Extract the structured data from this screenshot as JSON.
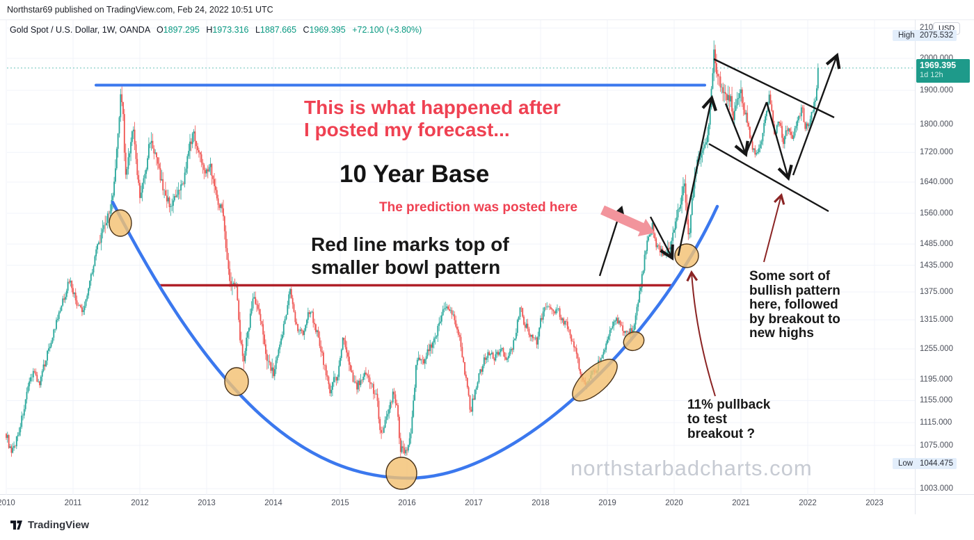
{
  "header": {
    "publish_line": "Northstar69 published on TradingView.com, Feb 24, 2022 10:51 UTC"
  },
  "legend": {
    "symbol": "Gold Spot / U.S. Dollar, 1W, OANDA",
    "o_label": "O",
    "o_value": "1897.295",
    "h_label": "H",
    "h_value": "1973.316",
    "l_label": "L",
    "l_value": "1887.665",
    "c_label": "C",
    "c_value": "1969.395",
    "change": "+72.100 (+3.80%)"
  },
  "price_axis": {
    "currency_button": "USD",
    "high_badge": {
      "label": "High",
      "value": "2075.532"
    },
    "low_badge": {
      "label": "Low",
      "value": "1044.475"
    },
    "last_price_badge": {
      "price": "1969.395",
      "countdown": "1d 12h"
    }
  },
  "annotations": {
    "headline": {
      "line1": "This is what happened after",
      "line2": "I posted my forecast..."
    },
    "base_label": {
      "text": "10 Year Base"
    },
    "prediction_label": {
      "text": "The prediction was posted here"
    },
    "redline_note": {
      "line1": "Red line marks top of",
      "line2": "smaller bowl pattern"
    },
    "bullish_note": {
      "line1": "Some sort of",
      "line2": "bullish pattern",
      "line3": "here, followed",
      "line4": "by breakout to",
      "line5": "new highs"
    },
    "pullback_note": {
      "line1": "11% pullback",
      "line2": "to test",
      "line3": "breakout ?"
    }
  },
  "watermark": {
    "text": "northstarbadcharts.com"
  },
  "footer": {
    "logo_text": "TradingView"
  },
  "chart_data": {
    "type": "candlestick",
    "title": "Gold Spot / U.S. Dollar",
    "timeframe": "1W",
    "exchange": "OANDA",
    "last_bar": {
      "open": 1897.295,
      "high": 1973.316,
      "low": 1887.665,
      "close": 1969.395,
      "change": 72.1,
      "change_pct": 3.8
    },
    "y_axis": {
      "scale": "log",
      "ticks": [
        2100,
        2000,
        1900,
        1800,
        1720,
        1640,
        1560,
        1485,
        1435,
        1375,
        1315,
        1255,
        1195,
        1155,
        1115,
        1075,
        1003
      ],
      "high_marker": 2075.532,
      "low_marker": 1044.475,
      "last_price": 1969.395
    },
    "x_axis": {
      "years": [
        2010,
        2011,
        2012,
        2013,
        2014,
        2015,
        2016,
        2017,
        2018,
        2019,
        2020,
        2021,
        2022,
        2023
      ]
    },
    "grid": true,
    "colors": {
      "up": "#26a69a",
      "down": "#ef5350",
      "blue_line": "#3b78ee",
      "red_line": "#b02028",
      "maroon": "#8b2424",
      "pink": "#f2949c",
      "ellipse": "#f3c173",
      "black": "#161616"
    },
    "overlays": {
      "horizontal_blue_line_price": 1917,
      "horizontal_red_line_price": 1400,
      "bowl_pattern": "10 year rounded base from 2011 peak to 2020 breakout",
      "descending_channel": "bull flag 2020-2022 with zigzag arrows and breakout arrow"
    },
    "price_path": [
      [
        2010.0,
        1095
      ],
      [
        2010.08,
        1058
      ],
      [
        2010.2,
        1105
      ],
      [
        2010.4,
        1215
      ],
      [
        2010.5,
        1185
      ],
      [
        2010.6,
        1240
      ],
      [
        2010.8,
        1330
      ],
      [
        2010.95,
        1405
      ],
      [
        2011.05,
        1350
      ],
      [
        2011.15,
        1330
      ],
      [
        2011.35,
        1470
      ],
      [
        2011.5,
        1540
      ],
      [
        2011.6,
        1600
      ],
      [
        2011.68,
        1780
      ],
      [
        2011.71,
        1898
      ],
      [
        2011.75,
        1830
      ],
      [
        2011.78,
        1650
      ],
      [
        2011.85,
        1730
      ],
      [
        2011.9,
        1790
      ],
      [
        2011.95,
        1680
      ],
      [
        2012.0,
        1600
      ],
      [
        2012.1,
        1680
      ],
      [
        2012.15,
        1760
      ],
      [
        2012.25,
        1700
      ],
      [
        2012.35,
        1620
      ],
      [
        2012.45,
        1580
      ],
      [
        2012.55,
        1600
      ],
      [
        2012.65,
        1640
      ],
      [
        2012.75,
        1740
      ],
      [
        2012.8,
        1775
      ],
      [
        2012.9,
        1710
      ],
      [
        2013.0,
        1665
      ],
      [
        2013.05,
        1690
      ],
      [
        2013.15,
        1600
      ],
      [
        2013.25,
        1560
      ],
      [
        2013.3,
        1460
      ],
      [
        2013.35,
        1390
      ],
      [
        2013.45,
        1390
      ],
      [
        2013.5,
        1280
      ],
      [
        2013.55,
        1230
      ],
      [
        2013.65,
        1320
      ],
      [
        2013.7,
        1370
      ],
      [
        2013.8,
        1320
      ],
      [
        2013.9,
        1240
      ],
      [
        2014.0,
        1205
      ],
      [
        2014.1,
        1260
      ],
      [
        2014.2,
        1340
      ],
      [
        2014.25,
        1380
      ],
      [
        2014.35,
        1300
      ],
      [
        2014.45,
        1290
      ],
      [
        2014.5,
        1315
      ],
      [
        2014.55,
        1340
      ],
      [
        2014.65,
        1290
      ],
      [
        2014.75,
        1230
      ],
      [
        2014.85,
        1170
      ],
      [
        2014.9,
        1200
      ],
      [
        2014.95,
        1190
      ],
      [
        2015.05,
        1280
      ],
      [
        2015.15,
        1210
      ],
      [
        2015.25,
        1180
      ],
      [
        2015.35,
        1205
      ],
      [
        2015.45,
        1190
      ],
      [
        2015.55,
        1160
      ],
      [
        2015.6,
        1090
      ],
      [
        2015.7,
        1130
      ],
      [
        2015.8,
        1170
      ],
      [
        2015.85,
        1140
      ],
      [
        2015.9,
        1070
      ],
      [
        2016.0,
        1062
      ],
      [
        2016.05,
        1090
      ],
      [
        2016.1,
        1160
      ],
      [
        2016.15,
        1240
      ],
      [
        2016.25,
        1230
      ],
      [
        2016.35,
        1260
      ],
      [
        2016.45,
        1290
      ],
      [
        2016.55,
        1340
      ],
      [
        2016.6,
        1350
      ],
      [
        2016.7,
        1320
      ],
      [
        2016.8,
        1270
      ],
      [
        2016.85,
        1220
      ],
      [
        2016.9,
        1180
      ],
      [
        2016.95,
        1135
      ],
      [
        2017.05,
        1190
      ],
      [
        2017.15,
        1230
      ],
      [
        2017.25,
        1250
      ],
      [
        2017.3,
        1230
      ],
      [
        2017.4,
        1260
      ],
      [
        2017.5,
        1230
      ],
      [
        2017.6,
        1270
      ],
      [
        2017.7,
        1340
      ],
      [
        2017.75,
        1310
      ],
      [
        2017.85,
        1280
      ],
      [
        2017.95,
        1270
      ],
      [
        2018.0,
        1310
      ],
      [
        2018.08,
        1350
      ],
      [
        2018.15,
        1330
      ],
      [
        2018.25,
        1340
      ],
      [
        2018.3,
        1320
      ],
      [
        2018.4,
        1300
      ],
      [
        2018.5,
        1260
      ],
      [
        2018.6,
        1210
      ],
      [
        2018.65,
        1190
      ],
      [
        2018.75,
        1200
      ],
      [
        2018.85,
        1220
      ],
      [
        2018.95,
        1255
      ],
      [
        2019.05,
        1290
      ],
      [
        2019.12,
        1320
      ],
      [
        2019.2,
        1300
      ],
      [
        2019.3,
        1280
      ],
      [
        2019.4,
        1300
      ],
      [
        2019.45,
        1345
      ],
      [
        2019.52,
        1410
      ],
      [
        2019.6,
        1500
      ],
      [
        2019.68,
        1530
      ],
      [
        2019.72,
        1490
      ],
      [
        2019.8,
        1470
      ],
      [
        2019.88,
        1460
      ],
      [
        2019.95,
        1480
      ],
      [
        2020.0,
        1520
      ],
      [
        2020.05,
        1560
      ],
      [
        2020.1,
        1585
      ],
      [
        2020.15,
        1650
      ],
      [
        2020.18,
        1580
      ],
      [
        2020.22,
        1495
      ],
      [
        2020.28,
        1620
      ],
      [
        2020.33,
        1680
      ],
      [
        2020.4,
        1720
      ],
      [
        2020.45,
        1730
      ],
      [
        2020.5,
        1770
      ],
      [
        2020.55,
        1870
      ],
      [
        2020.58,
        1970
      ],
      [
        2020.6,
        2040
      ],
      [
        2020.62,
        1960
      ],
      [
        2020.68,
        1930
      ],
      [
        2020.72,
        1900
      ],
      [
        2020.78,
        1880
      ],
      [
        2020.85,
        1870
      ],
      [
        2020.88,
        1810
      ],
      [
        2020.92,
        1840
      ],
      [
        2020.95,
        1880
      ],
      [
        2021.0,
        1900
      ],
      [
        2021.02,
        1850
      ],
      [
        2021.08,
        1820
      ],
      [
        2021.12,
        1780
      ],
      [
        2021.18,
        1730
      ],
      [
        2021.22,
        1700
      ],
      [
        2021.28,
        1740
      ],
      [
        2021.33,
        1780
      ],
      [
        2021.38,
        1840
      ],
      [
        2021.42,
        1880
      ],
      [
        2021.45,
        1860
      ],
      [
        2021.48,
        1790
      ],
      [
        2021.52,
        1770
      ],
      [
        2021.55,
        1810
      ],
      [
        2021.6,
        1800
      ],
      [
        2021.63,
        1740
      ],
      [
        2021.68,
        1790
      ],
      [
        2021.72,
        1780
      ],
      [
        2021.78,
        1760
      ],
      [
        2021.82,
        1790
      ],
      [
        2021.85,
        1810
      ],
      [
        2021.88,
        1830
      ],
      [
        2021.92,
        1860
      ],
      [
        2021.95,
        1800
      ],
      [
        2021.98,
        1790
      ],
      [
        2022.02,
        1800
      ],
      [
        2022.05,
        1820
      ],
      [
        2022.08,
        1840
      ],
      [
        2022.1,
        1860
      ],
      [
        2022.13,
        1900
      ],
      [
        2022.15,
        1969
      ]
    ]
  }
}
